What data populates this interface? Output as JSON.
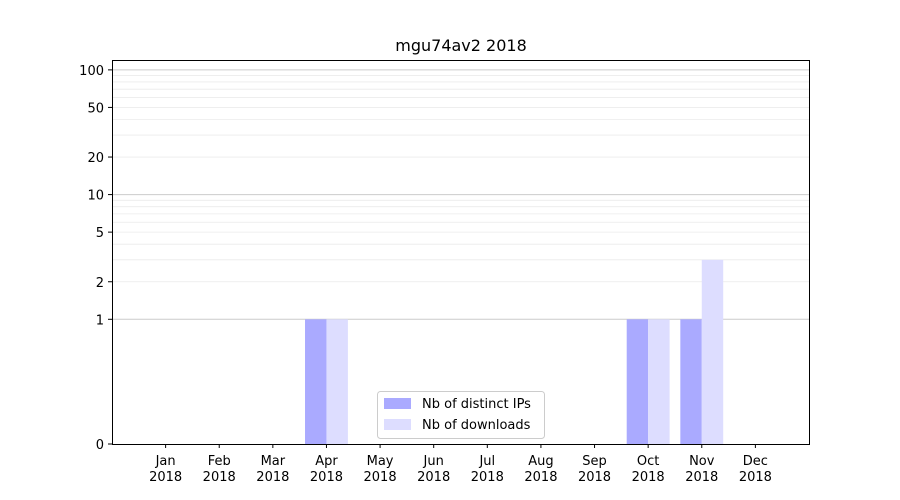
{
  "chart_data": {
    "type": "bar",
    "title": "mgu74av2 2018",
    "xlabel": "",
    "ylabel": "",
    "yscale": "symlog",
    "ylim": [
      0,
      120
    ],
    "y_ticks": [
      0,
      1,
      2,
      5,
      10,
      20,
      50,
      100
    ],
    "grid": "horizontal",
    "legend_position": "bottom-center",
    "categories": [
      "Jan\n2018",
      "Feb\n2018",
      "Mar\n2018",
      "Apr\n2018",
      "May\n2018",
      "Jun\n2018",
      "Jul\n2018",
      "Aug\n2018",
      "Sep\n2018",
      "Oct\n2018",
      "Nov\n2018",
      "Dec\n2018"
    ],
    "series": [
      {
        "name": "Nb of distinct IPs",
        "color": "#aaaaff",
        "values": [
          0,
          0,
          0,
          1,
          0,
          0,
          0,
          0,
          0,
          1,
          1,
          0
        ]
      },
      {
        "name": "Nb of downloads",
        "color": "#ddddff",
        "values": [
          0,
          0,
          0,
          1,
          0,
          0,
          0,
          0,
          0,
          1,
          3,
          0
        ]
      }
    ]
  }
}
